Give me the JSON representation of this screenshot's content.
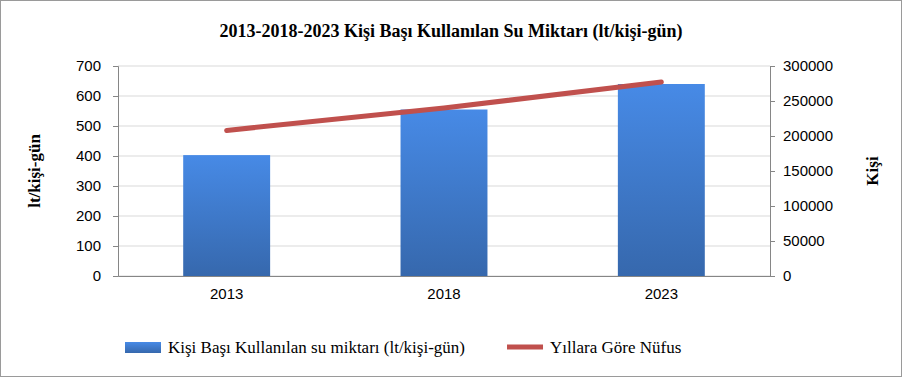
{
  "chart_data": {
    "type": "bar",
    "title": "2013-2018-2023 Kişi Başı Kullanılan Su Miktarı  (lt/kişi-gün)",
    "ylabel": "lt/kişi-gün",
    "y2label": "Kişi",
    "categories": [
      "2013",
      "2018",
      "2023"
    ],
    "series": [
      {
        "name": "Kişi Başı Kullanılan su miktarı (lt/kişi-gün)",
        "type": "bar",
        "color": "#3f7acb",
        "values": [
          403,
          555,
          640
        ]
      },
      {
        "name": "Yıllara Göre Nüfus",
        "type": "line",
        "axis": "y2",
        "color": "#c0504d",
        "values": [
          208000,
          240000,
          277000
        ]
      }
    ],
    "ylim": [
      0,
      700
    ],
    "yticks": [
      0,
      100,
      200,
      300,
      400,
      500,
      600,
      700
    ],
    "y2lim": [
      0,
      300000
    ],
    "y2ticks": [
      0,
      50000,
      100000,
      150000,
      200000,
      250000,
      300000
    ],
    "grid": true,
    "legend": "bottom"
  }
}
